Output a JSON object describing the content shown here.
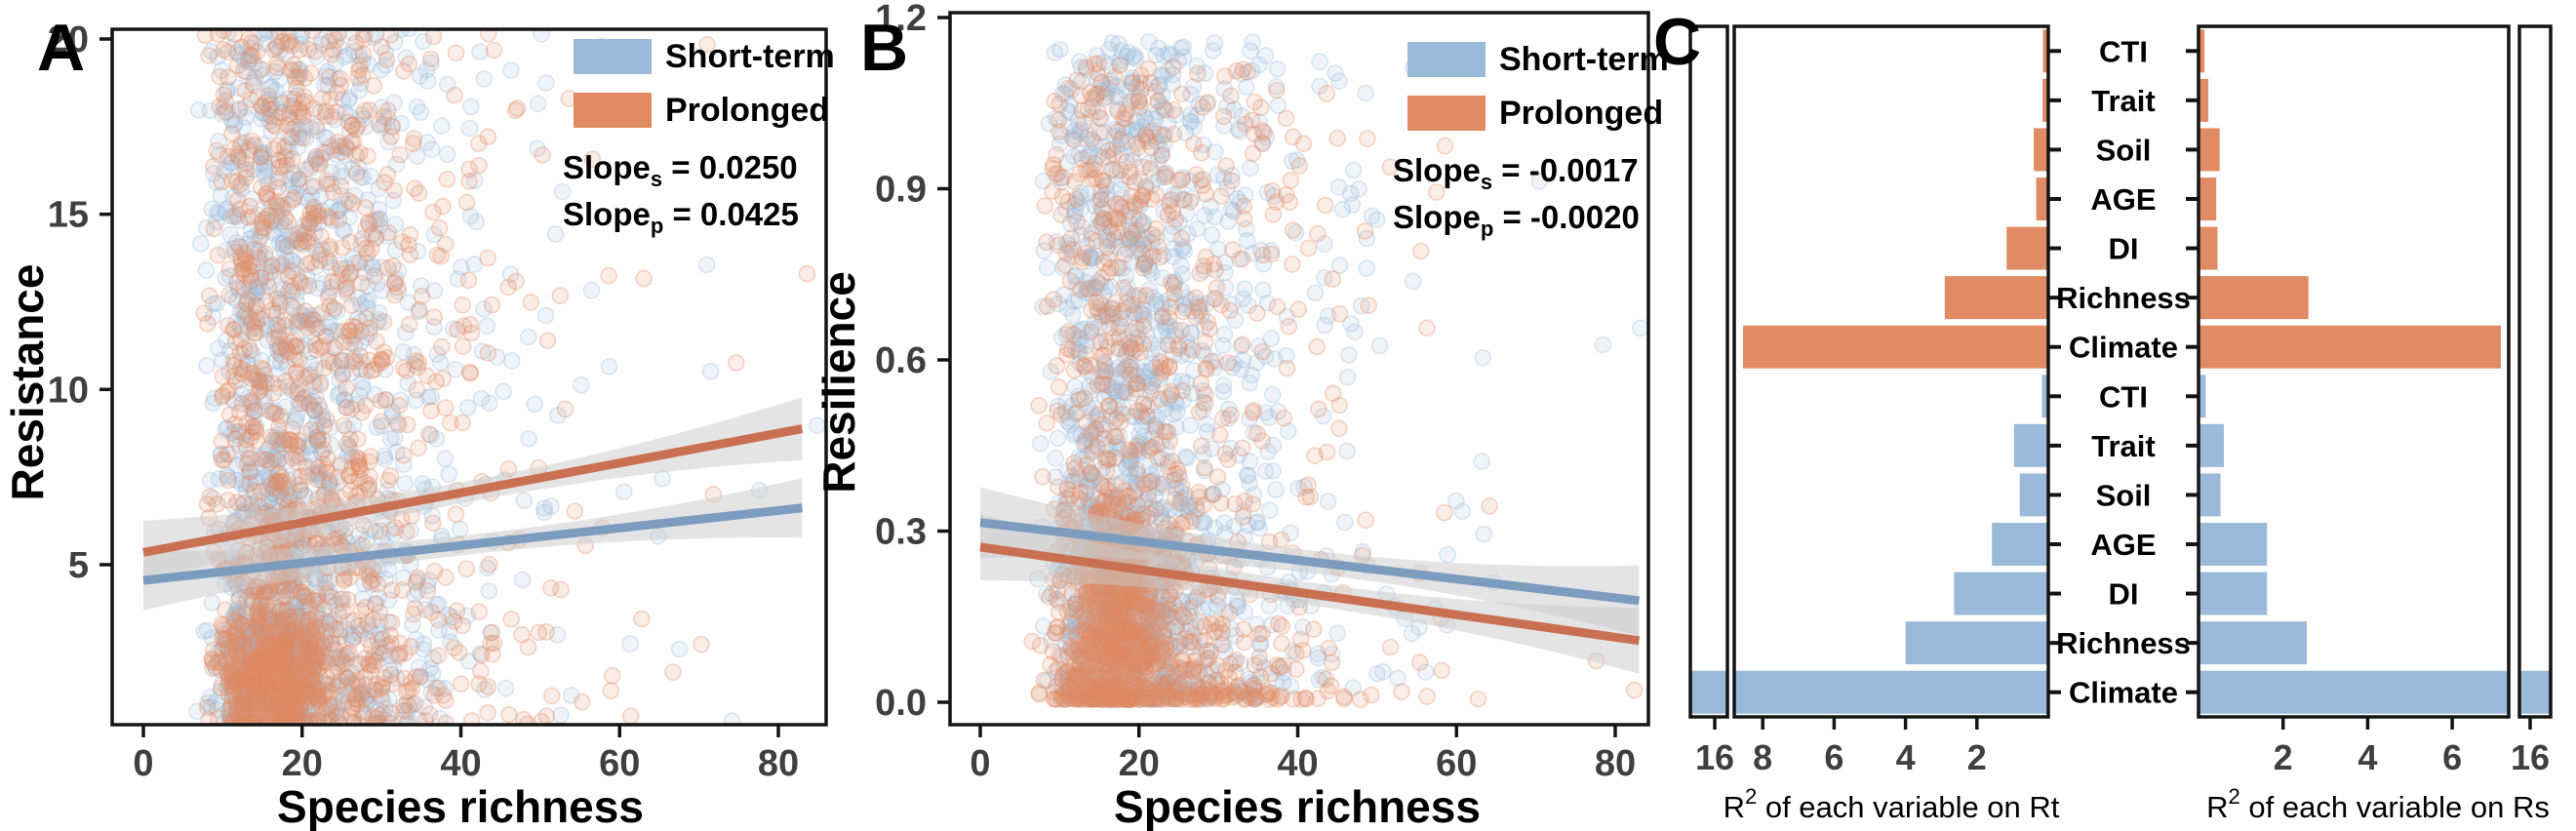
{
  "colors": {
    "blue": "#9BBADA",
    "orange": "#E08B64",
    "blue_line": "#7C9CBF",
    "orange_line": "#CA7052",
    "ribbon": "#C9C9C9",
    "axis": "#141414",
    "tick_text": "#3F3F3F"
  },
  "panels": {
    "a": {
      "label": "A",
      "y_title": "Resistance",
      "x_title": "Species richness",
      "ytick_labels": [
        "20",
        "15",
        "10",
        "5"
      ],
      "xtick_labels": [
        "0",
        "20",
        "40",
        "60",
        "80"
      ],
      "legend": {
        "short": "Short-term",
        "long": "Prolonged"
      },
      "slope1": {
        "prefix": "Slope",
        "sub": "s",
        "rest": " = 0.0250"
      },
      "slope2": {
        "prefix": "Slope",
        "sub": "p",
        "rest": " = 0.0425"
      }
    },
    "b": {
      "label": "B",
      "y_title": "Resilience",
      "x_title": "Species richness",
      "ytick_labels": [
        "1.2",
        "0.9",
        "0.6",
        "0.3",
        "0.0"
      ],
      "xtick_labels": [
        "0",
        "20",
        "40",
        "60",
        "80"
      ],
      "legend": {
        "short": "Short-term",
        "long": "Prolonged"
      },
      "slope1": {
        "prefix": "Slope",
        "sub": "s",
        "rest": " = -0.0017"
      },
      "slope2": {
        "prefix": "Slope",
        "sub": "p",
        "rest": " = -0.0020"
      }
    },
    "c": {
      "label": "C",
      "row_labels_top": [
        "CTI",
        "Trait",
        "Soil",
        "AGE",
        "DI",
        "Richness",
        "Climate"
      ],
      "row_labels_bottom": [
        "CTI",
        "Trait",
        "Soil",
        "AGE",
        "DI",
        "Richness",
        "Climate"
      ],
      "left_tick_labels": [
        "16",
        "8",
        "6",
        "4",
        "2"
      ],
      "right_tick_labels": [
        "2",
        "4",
        "6",
        "16"
      ],
      "left_title": {
        "prefix": "R",
        "sup": "2",
        "rest": " of each variable on Rt"
      },
      "right_title": {
        "prefix": "R",
        "sup": "2",
        "rest": " of each variable on Rs"
      }
    }
  },
  "chart_data": [
    {
      "id": "A",
      "type": "scatter",
      "xlabel": "Species richness",
      "ylabel": "Resistance",
      "xlim": [
        -4,
        86
      ],
      "ylim": [
        0.4,
        20.3
      ],
      "xticks": [
        0,
        20,
        40,
        60,
        80
      ],
      "yticks": [
        20,
        15,
        10,
        5
      ],
      "grid": false,
      "legend_position": "top-right",
      "series": [
        {
          "name": "Short-term",
          "role": "blue",
          "slope": 0.025,
          "regression_line": {
            "x": [
              0,
              83
            ],
            "y": [
              4.55,
              6.62
            ]
          },
          "ci_halfwidth": {
            "mid": 0.28,
            "end": 0.85
          },
          "cloud": {
            "n": 1250,
            "seed": 101,
            "x_lognorm": {
              "mu": 2.77,
              "sigma": 0.52,
              "shift": 4
            },
            "y_power": {
              "min": 0.45,
              "max": 20.3,
              "pow": 1.3
            },
            "cluster": {
              "n": 260,
              "cx": 17,
              "cy": 2.1,
              "sx": 3.6,
              "sy": 0.9
            }
          }
        },
        {
          "name": "Prolonged",
          "role": "orange",
          "slope": 0.0425,
          "regression_line": {
            "x": [
              0,
              83
            ],
            "y": [
              5.35,
              8.88
            ]
          },
          "ci_halfwidth": {
            "mid": 0.3,
            "end": 0.9
          },
          "cloud": {
            "n": 1250,
            "seed": 202,
            "x_lognorm": {
              "mu": 2.77,
              "sigma": 0.52,
              "shift": 4
            },
            "y_power": {
              "min": 0.45,
              "max": 20.3,
              "pow": 1.45
            },
            "cluster": {
              "n": 340,
              "cx": 16.5,
              "cy": 1.9,
              "sx": 3.2,
              "sy": 0.8
            }
          }
        }
      ]
    },
    {
      "id": "B",
      "type": "scatter",
      "xlabel": "Species richness",
      "ylabel": "Resilience",
      "xlim": [
        -4,
        84
      ],
      "ylim": [
        -0.04,
        1.21
      ],
      "xticks": [
        0,
        20,
        40,
        60,
        80
      ],
      "yticks": [
        1.2,
        0.9,
        0.6,
        0.3,
        0.0
      ],
      "grid": false,
      "legend_position": "top-right",
      "series": [
        {
          "name": "Short-term",
          "role": "blue",
          "slope": -0.0017,
          "regression_line": {
            "x": [
              0,
              83
            ],
            "y": [
              0.315,
              0.178
            ]
          },
          "ci_halfwidth": {
            "mid": 0.02,
            "end": 0.062
          },
          "cloud": {
            "n": 1250,
            "seed": 303,
            "x_lognorm": {
              "mu": 2.77,
              "sigma": 0.52,
              "shift": 4
            },
            "y_power": {
              "min": 0.005,
              "max": 1.16,
              "pow": 1.35
            },
            "cluster": {
              "n": 200,
              "cx": 18,
              "cy": 0.2,
              "sx": 3.5,
              "sy": 0.1
            }
          }
        },
        {
          "name": "Prolonged",
          "role": "orange",
          "slope": -0.002,
          "regression_line": {
            "x": [
              0,
              83
            ],
            "y": [
              0.272,
              0.108
            ]
          },
          "ci_halfwidth": {
            "mid": 0.02,
            "end": 0.058
          },
          "cloud": {
            "n": 1150,
            "seed": 404,
            "x_lognorm": {
              "mu": 2.77,
              "sigma": 0.52,
              "shift": 4
            },
            "y_power": {
              "min": 0.005,
              "max": 1.12,
              "pow": 2.3
            },
            "cluster": {
              "n": 300,
              "cx": 17,
              "cy": 0.16,
              "sx": 3.0,
              "sy": 0.08
            }
          }
        }
      ]
    },
    {
      "id": "C",
      "type": "bar",
      "orientation": "horizontal",
      "categories": [
        "CTI",
        "Trait",
        "Soil",
        "AGE",
        "DI",
        "Richness",
        "Climate"
      ],
      "group_order": [
        "Prolonged",
        "Short-term"
      ],
      "axis_break_value": 16,
      "left": {
        "xlabel": "R2 of each variable on Rt",
        "ticks": [
          16,
          8,
          6,
          4,
          2
        ],
        "main_max": 8.8,
        "series": [
          {
            "name": "Prolonged",
            "role": "orange",
            "values": [
              0.15,
              0.16,
              0.41,
              0.34,
              1.17,
              2.9,
              8.55
            ]
          },
          {
            "name": "Short-term",
            "role": "blue",
            "values": [
              0.18,
              0.96,
              0.8,
              1.58,
              2.64,
              4.0,
              16.3
            ]
          }
        ]
      },
      "right": {
        "xlabel": "R2 of each variable on Rs",
        "ticks": [
          2,
          4,
          6,
          16
        ],
        "main_max": 7.33,
        "series": [
          {
            "name": "Prolonged",
            "role": "orange",
            "values": [
              0.14,
              0.23,
              0.5,
              0.42,
              0.45,
              2.6,
              7.15
            ]
          },
          {
            "name": "Short-term",
            "role": "blue",
            "values": [
              0.17,
              0.6,
              0.52,
              1.62,
              1.62,
              2.56,
              16.3
            ]
          }
        ]
      }
    }
  ]
}
